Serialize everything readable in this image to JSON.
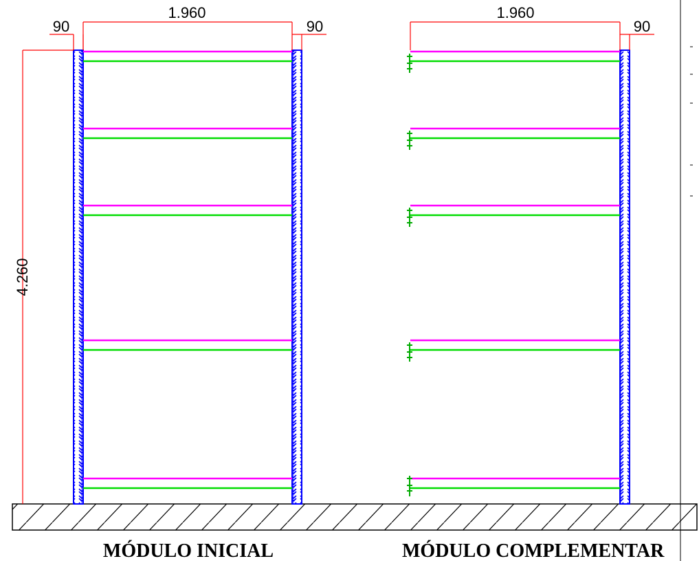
{
  "colors": {
    "dimension": "#ff0000",
    "upright": "#0000ff",
    "beam_top": "#ff00ff",
    "beam_bottom": "#00dd00",
    "outline": "#000000"
  },
  "module_initial": {
    "title": "MÓDULO INICIAL",
    "dim_width": "1.960",
    "dim_left_upright": "90",
    "dim_right_upright": "90",
    "dim_height": "4.260",
    "level_count": 5
  },
  "module_complementary": {
    "title": "MÓDULO COMPLEMENTAR",
    "dim_width": "1.960",
    "dim_right_upright": "90",
    "level_count": 5
  }
}
